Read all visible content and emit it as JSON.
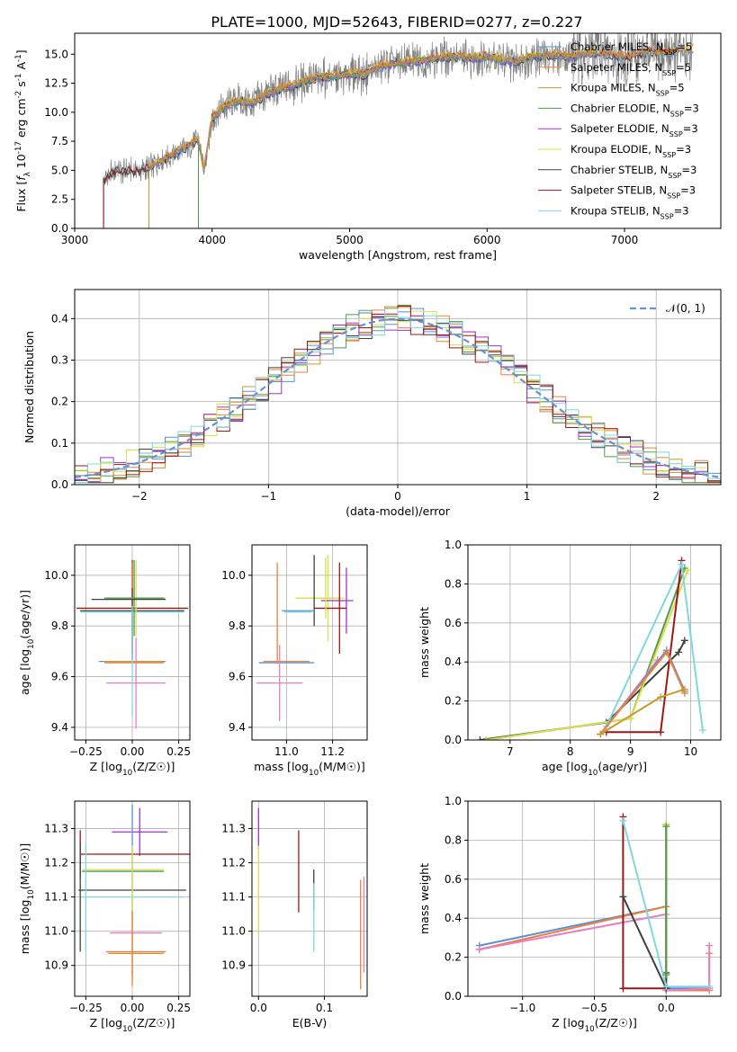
{
  "title": "PLATE=1000, MJD=52643, FIBERID=0277, z=0.227",
  "colors": {
    "data": "#808080",
    "chabrier_miles": "#5b8fd6",
    "salpeter_miles": "#f07f3c",
    "kroupa_miles": "#c79a2e",
    "chabrier_elodie": "#4e9a4e",
    "salpeter_elodie": "#a331c8",
    "kroupa_elodie": "#d7df4a",
    "chabrier_stelib": "#404040",
    "salpeter_stelib": "#a01515",
    "kroupa_stelib": "#7fd8e0",
    "pink": "#e47fc3",
    "normal": "#6a8fd8"
  },
  "chart_data": [
    {
      "id": "spectrum",
      "type": "line",
      "xlabel": "wavelength [Angstrom, rest frame]",
      "ylabel": "Flux [f_λ 10^-17 erg cm^-2 s^-1 A^-1]",
      "xlim": [
        3000,
        7700
      ],
      "ylim": [
        0,
        16.8
      ],
      "xticks": [
        3000,
        4000,
        5000,
        6000,
        7000
      ],
      "yticks": [
        0.0,
        2.5,
        5.0,
        7.5,
        10.0,
        12.5,
        15.0
      ],
      "legend_position": "top-right",
      "legend": [
        {
          "label": "Chabrier MILES, N_SSP=5",
          "color_key": "chabrier_miles"
        },
        {
          "label": "Salpeter MILES, N_SSP=5",
          "color_key": "salpeter_miles"
        },
        {
          "label": "Kroupa MILES, N_SSP=5",
          "color_key": "kroupa_miles"
        },
        {
          "label": "Chabrier ELODIE, N_SSP=3",
          "color_key": "chabrier_elodie"
        },
        {
          "label": "Salpeter ELODIE, N_SSP=3",
          "color_key": "salpeter_elodie"
        },
        {
          "label": "Kroupa ELODIE, N_SSP=3",
          "color_key": "kroupa_elodie"
        },
        {
          "label": "Chabrier STELIB, N_SSP=3",
          "color_key": "chabrier_stelib"
        },
        {
          "label": "Salpeter STELIB, N_SSP=3",
          "color_key": "salpeter_stelib"
        },
        {
          "label": "Kroupa STELIB, N_SSP=3",
          "color_key": "kroupa_stelib"
        }
      ],
      "continuum": [
        [
          3210,
          4.2
        ],
        [
          3300,
          5.0
        ],
        [
          3400,
          4.9
        ],
        [
          3500,
          5.0
        ],
        [
          3560,
          5.3
        ],
        [
          3700,
          6.3
        ],
        [
          3800,
          6.9
        ],
        [
          3900,
          7.6
        ],
        [
          3940,
          5.0
        ],
        [
          4000,
          9.5
        ],
        [
          4100,
          10.6
        ],
        [
          4200,
          11.0
        ],
        [
          4300,
          10.8
        ],
        [
          4400,
          11.6
        ],
        [
          4500,
          12.0
        ],
        [
          4600,
          12.3
        ],
        [
          4700,
          12.8
        ],
        [
          4800,
          13.0
        ],
        [
          4900,
          13.1
        ],
        [
          5000,
          13.3
        ],
        [
          5100,
          13.2
        ],
        [
          5200,
          13.8
        ],
        [
          5300,
          14.1
        ],
        [
          5400,
          14.3
        ],
        [
          5500,
          14.4
        ],
        [
          5600,
          14.6
        ],
        [
          5700,
          14.7
        ],
        [
          5800,
          14.8
        ],
        [
          5900,
          14.6
        ],
        [
          6000,
          14.8
        ],
        [
          6100,
          14.5
        ],
        [
          6200,
          14.3
        ],
        [
          6300,
          14.7
        ],
        [
          6400,
          14.8
        ],
        [
          6500,
          14.9
        ],
        [
          6600,
          14.7
        ],
        [
          6700,
          15.0
        ],
        [
          6800,
          15.1
        ],
        [
          6900,
          14.9
        ],
        [
          7000,
          14.7
        ],
        [
          7100,
          15.0
        ],
        [
          7200,
          15.2
        ],
        [
          7300,
          15.1
        ],
        [
          7400,
          15.3
        ],
        [
          7500,
          15.4
        ]
      ],
      "model_ranges": {
        "miles_start": 3540,
        "elodie_start": 3900,
        "elodie_end": 6800,
        "stelib_start": 3210,
        "stelib_end": 7400
      },
      "data_range": [
        3210,
        7500
      ]
    },
    {
      "id": "residuals",
      "type": "histogram",
      "xlabel": "(data-model)/error",
      "ylabel": "Normed distribution",
      "xlim": [
        -2.5,
        2.5
      ],
      "ylim": [
        0,
        0.47
      ],
      "xticks": [
        -2,
        -1,
        0,
        1,
        2
      ],
      "yticks": [
        0.0,
        0.1,
        0.2,
        0.3,
        0.4
      ],
      "bin_width": 0.1,
      "bin_start": -2.5,
      "bins": 50,
      "reference_curve": {
        "label": "𝒩(0, 1)",
        "mean": 0,
        "sigma": 1,
        "style": "dashed"
      },
      "legend_position": "top-right",
      "grid": true
    },
    {
      "id": "age-vs-Z",
      "type": "errorbar",
      "xlabel": "Z [log10(Z/Z☉)]",
      "ylabel": "age [log10(age/yr)]",
      "xlim": [
        -0.31,
        0.31
      ],
      "ylim": [
        9.35,
        10.12
      ],
      "xticks": [
        -0.25,
        0.0,
        0.25
      ],
      "yticks": [
        9.4,
        9.6,
        9.8,
        10.0
      ],
      "grid": true,
      "points": [
        {
          "x": 0.0,
          "y": 9.86,
          "xerr": 0.28,
          "yerr": 0.2,
          "color_key": "chabrier_stelib"
        },
        {
          "x": 0.0,
          "y": 9.87,
          "xerr": 0.3,
          "yerr": 0.18,
          "color_key": "salpeter_stelib"
        },
        {
          "x": 0.0,
          "y": 9.855,
          "xerr": 0.28,
          "yerr": 0.0,
          "color_key": "kroupa_stelib"
        },
        {
          "x": 0.02,
          "y": 9.91,
          "xerr": 0.16,
          "yerr": 0.15,
          "color_key": "kroupa_elodie"
        },
        {
          "x": 0.01,
          "y": 9.91,
          "xerr": 0.16,
          "yerr": 0.15,
          "color_key": "chabrier_elodie"
        },
        {
          "x": -0.02,
          "y": 9.905,
          "xerr": 0.2,
          "yerr": 0.0,
          "color_key": "chabrier_stelib"
        },
        {
          "x": 0.0,
          "y": 9.66,
          "xerr": 0.18,
          "yerr": 0.0,
          "color_key": "chabrier_miles"
        },
        {
          "x": 0.01,
          "y": 9.655,
          "xerr": 0.16,
          "yerr": 0.0,
          "color_key": "salpeter_miles"
        },
        {
          "x": 0.01,
          "y": 9.66,
          "xerr": 0.16,
          "yerr": 0.0,
          "color_key": "kroupa_miles"
        },
        {
          "x": 0.02,
          "y": 9.575,
          "xerr": 0.16,
          "yerr": 0.18,
          "color_key": "pink"
        },
        {
          "x": 0.0,
          "y": 9.66,
          "xerr": 0.0,
          "yerr": 0.22,
          "color_key": "kroupa_stelib"
        },
        {
          "x": 0.0,
          "y": 10.0,
          "xerr": 0.0,
          "yerr": 0.05,
          "color_key": "salpeter_miles"
        }
      ]
    },
    {
      "id": "age-vs-mass",
      "type": "errorbar",
      "xlabel": "mass [log10(M/M☉)]",
      "ylabel": "",
      "xlim": [
        10.85,
        11.35
      ],
      "ylim": [
        9.35,
        10.12
      ],
      "xticks": [
        11.0,
        11.2
      ],
      "yticks": [
        9.4,
        9.6,
        9.8,
        10.0
      ],
      "grid": true,
      "points": [
        {
          "x": 11.12,
          "y": 9.91,
          "xerr": 0.08,
          "yerr": 0.0,
          "color_key": "kroupa_elodie"
        },
        {
          "x": 11.18,
          "y": 9.91,
          "xerr": 0.07,
          "yerr": 0.17,
          "color_key": "kroupa_elodie"
        },
        {
          "x": 11.22,
          "y": 9.9,
          "xerr": 0.07,
          "yerr": 0.0,
          "color_key": "salpeter_elodie"
        },
        {
          "x": 11.26,
          "y": 9.9,
          "xerr": 0.0,
          "yerr": 0.13,
          "color_key": "salpeter_elodie"
        },
        {
          "x": 11.19,
          "y": 9.87,
          "xerr": 0.07,
          "yerr": 0.0,
          "color_key": "salpeter_stelib"
        },
        {
          "x": 11.23,
          "y": 9.87,
          "xerr": 0.0,
          "yerr": 0.18,
          "color_key": "salpeter_stelib"
        },
        {
          "x": 11.12,
          "y": 9.94,
          "xerr": 0.0,
          "yerr": 0.14,
          "color_key": "chabrier_stelib"
        },
        {
          "x": 11.05,
          "y": 9.86,
          "xerr": 0.07,
          "yerr": 0.0,
          "color_key": "chabrier_miles"
        },
        {
          "x": 11.05,
          "y": 9.855,
          "xerr": 0.06,
          "yerr": 0.0,
          "color_key": "kroupa_stelib"
        },
        {
          "x": 11.0,
          "y": 9.655,
          "xerr": 0.12,
          "yerr": 0.0,
          "color_key": "chabrier_miles"
        },
        {
          "x": 11.0,
          "y": 9.66,
          "xerr": 0.1,
          "yerr": 0.0,
          "color_key": "salpeter_miles"
        },
        {
          "x": 10.96,
          "y": 9.85,
          "xerr": 0.0,
          "yerr": 0.2,
          "color_key": "salpeter_miles"
        },
        {
          "x": 10.97,
          "y": 9.575,
          "xerr": 0.1,
          "yerr": 0.15,
          "color_key": "pink"
        },
        {
          "x": 11.17,
          "y": 9.95,
          "xerr": 0.0,
          "yerr": 0.12,
          "color_key": "kroupa_elodie"
        }
      ]
    },
    {
      "id": "weight-vs-age",
      "type": "line",
      "xlabel": "age [log10(age/yr)]",
      "ylabel": "mass weight",
      "xlim": [
        6.3,
        10.5
      ],
      "ylim": [
        0.0,
        1.0
      ],
      "xticks": [
        7,
        8,
        9,
        10
      ],
      "yticks": [
        0.0,
        0.2,
        0.4,
        0.6,
        0.8,
        1.0
      ],
      "grid": true,
      "series": [
        {
          "color_key": "chabrier_stelib",
          "x": [
            6.5,
            8.6,
            9.8,
            9.9
          ],
          "y": [
            0.0,
            0.09,
            0.45,
            0.51
          ]
        },
        {
          "color_key": "chabrier_elodie",
          "x": [
            6.6,
            9.0,
            9.9
          ],
          "y": [
            0.0,
            0.11,
            0.88
          ]
        },
        {
          "color_key": "kroupa_elodie",
          "x": [
            6.6,
            9.0,
            9.95
          ],
          "y": [
            0.0,
            0.11,
            0.87
          ]
        },
        {
          "color_key": "salpeter_stelib",
          "x": [
            8.6,
            9.5,
            9.85
          ],
          "y": [
            0.04,
            0.04,
            0.92
          ]
        },
        {
          "color_key": "kroupa_stelib",
          "x": [
            8.6,
            9.85,
            10.2
          ],
          "y": [
            0.07,
            0.9,
            0.05
          ]
        },
        {
          "color_key": "pink",
          "x": [
            8.5,
            9.45
          ],
          "y": [
            0.03,
            0.41
          ]
        },
        {
          "color_key": "chabrier_miles",
          "x": [
            8.5,
            9.6,
            9.9
          ],
          "y": [
            0.03,
            0.46,
            0.25
          ]
        },
        {
          "color_key": "salpeter_miles",
          "x": [
            8.5,
            9.6,
            9.9
          ],
          "y": [
            0.03,
            0.45,
            0.24
          ]
        },
        {
          "color_key": "kroupa_miles",
          "x": [
            8.5,
            9.5,
            9.9
          ],
          "y": [
            0.03,
            0.22,
            0.26
          ]
        }
      ]
    },
    {
      "id": "mass-vs-Z",
      "type": "errorbar",
      "xlabel": "Z [log10(Z/Z☉)]",
      "ylabel": "mass [log10(M/M☉)]",
      "xlim": [
        -0.31,
        0.31
      ],
      "ylim": [
        10.81,
        11.38
      ],
      "xticks": [
        -0.25,
        0.0,
        0.25
      ],
      "yticks": [
        10.9,
        11.0,
        11.1,
        11.2,
        11.3
      ],
      "grid": true,
      "points": [
        {
          "x": 0.04,
          "y": 11.29,
          "xerr": 0.15,
          "yerr": 0.07,
          "color_key": "salpeter_elodie"
        },
        {
          "x": 0.02,
          "y": 11.225,
          "xerr": 0.3,
          "yerr": 0.0,
          "color_key": "salpeter_stelib"
        },
        {
          "x": -0.28,
          "y": 11.225,
          "xerr": 0.0,
          "yerr": 0.07,
          "color_key": "salpeter_stelib"
        },
        {
          "x": -0.05,
          "y": 11.18,
          "xerr": 0.22,
          "yerr": 0.0,
          "color_key": "kroupa_elodie"
        },
        {
          "x": -0.05,
          "y": 11.175,
          "xerr": 0.22,
          "yerr": 0.0,
          "color_key": "chabrier_elodie"
        },
        {
          "x": 0.0,
          "y": 11.12,
          "xerr": 0.29,
          "yerr": 0.0,
          "color_key": "chabrier_stelib"
        },
        {
          "x": 0.0,
          "y": 11.1,
          "xerr": 0.28,
          "yerr": 0.0,
          "color_key": "kroupa_stelib"
        },
        {
          "x": -0.28,
          "y": 11.1,
          "xerr": 0.0,
          "yerr": 0.16,
          "color_key": "chabrier_stelib"
        },
        {
          "x": -0.25,
          "y": 11.1,
          "xerr": 0.0,
          "yerr": 0.16,
          "color_key": "kroupa_stelib"
        },
        {
          "x": 0.0,
          "y": 11.12,
          "xerr": 0.0,
          "yerr": 0.25,
          "color_key": "chabrier_miles"
        },
        {
          "x": 0.0,
          "y": 11.05,
          "xerr": 0.0,
          "yerr": 0.2,
          "color_key": "kroupa_elodie"
        },
        {
          "x": 0.02,
          "y": 10.995,
          "xerr": 0.14,
          "yerr": 0.0,
          "color_key": "pink"
        },
        {
          "x": 0.02,
          "y": 10.94,
          "xerr": 0.16,
          "yerr": 0.0,
          "color_key": "chabrier_miles"
        },
        {
          "x": 0.02,
          "y": 10.94,
          "xerr": 0.16,
          "yerr": 0.0,
          "color_key": "salpeter_miles"
        },
        {
          "x": 0.02,
          "y": 10.935,
          "xerr": 0.15,
          "yerr": 0.0,
          "color_key": "kroupa_miles"
        },
        {
          "x": 0.0,
          "y": 10.95,
          "xerr": 0.0,
          "yerr": 0.11,
          "color_key": "salpeter_miles"
        }
      ]
    },
    {
      "id": "mass-vs-EBV",
      "type": "errorbar",
      "xlabel": "E(B-V)",
      "ylabel": "",
      "xlim": [
        -0.01,
        0.165
      ],
      "ylim": [
        10.81,
        11.38
      ],
      "xticks": [
        0.0,
        0.1
      ],
      "yticks": [
        10.9,
        11.0,
        11.1,
        11.2,
        11.3
      ],
      "grid": true,
      "points": [
        {
          "x": 0.0,
          "y": 11.3,
          "xerr": 0.0,
          "yerr": 0.06,
          "color_key": "salpeter_elodie"
        },
        {
          "x": 0.0,
          "y": 11.12,
          "xerr": 0.0,
          "yerr": 0.13,
          "color_key": "kroupa_elodie"
        },
        {
          "x": 0.061,
          "y": 11.175,
          "xerr": 0.0,
          "yerr": 0.12,
          "color_key": "salpeter_stelib"
        },
        {
          "x": 0.084,
          "y": 11.12,
          "xerr": 0.0,
          "yerr": 0.06,
          "color_key": "chabrier_stelib"
        },
        {
          "x": 0.084,
          "y": 11.04,
          "xerr": 0.0,
          "yerr": 0.1,
          "color_key": "kroupa_stelib"
        },
        {
          "x": 0.155,
          "y": 10.99,
          "xerr": 0.0,
          "yerr": 0.16,
          "color_key": "salpeter_miles"
        },
        {
          "x": 0.16,
          "y": 11.02,
          "xerr": 0.0,
          "yerr": 0.14,
          "color_key": "pink"
        }
      ]
    },
    {
      "id": "weight-vs-Z",
      "type": "line",
      "xlabel": "Z [log10(Z/Z☉)]",
      "ylabel": "mass weight",
      "xlim": [
        -1.38,
        0.38
      ],
      "ylim": [
        0.0,
        1.0
      ],
      "xticks": [
        -1.0,
        -0.5,
        0.0
      ],
      "yticks": [
        0.0,
        0.2,
        0.4,
        0.6,
        0.8,
        1.0
      ],
      "grid": true,
      "series": [
        {
          "color_key": "chabrier_miles",
          "x": [
            -1.3,
            0.0,
            0.0,
            0.3
          ],
          "y": [
            0.26,
            0.46,
            0.04,
            0.04
          ]
        },
        {
          "color_key": "salpeter_miles",
          "x": [
            -1.3,
            0.0,
            0.0,
            0.3,
            0.3
          ],
          "y": [
            0.24,
            0.46,
            0.03,
            0.03,
            0.22
          ]
        },
        {
          "color_key": "pink",
          "x": [
            -1.3,
            0.0,
            0.0,
            0.3,
            0.3
          ],
          "y": [
            0.24,
            0.42,
            0.03,
            0.04,
            0.26
          ]
        },
        {
          "color_key": "salpeter_stelib",
          "x": [
            -0.3,
            -0.3,
            0.0
          ],
          "y": [
            0.92,
            0.04,
            0.04
          ]
        },
        {
          "color_key": "chabrier_stelib",
          "x": [
            -0.3,
            0.0,
            0.0,
            0.0
          ],
          "y": [
            0.51,
            0.04,
            0.12,
            0.88
          ]
        },
        {
          "color_key": "kroupa_stelib",
          "x": [
            -0.3,
            0.0,
            0.3
          ],
          "y": [
            0.9,
            0.05,
            0.05
          ]
        },
        {
          "color_key": "kroupa_elodie",
          "x": [
            0.0,
            0.0
          ],
          "y": [
            0.11,
            0.88
          ]
        },
        {
          "color_key": "chabrier_elodie",
          "x": [
            0.0,
            0.0
          ],
          "y": [
            0.11,
            0.87
          ]
        }
      ]
    }
  ]
}
